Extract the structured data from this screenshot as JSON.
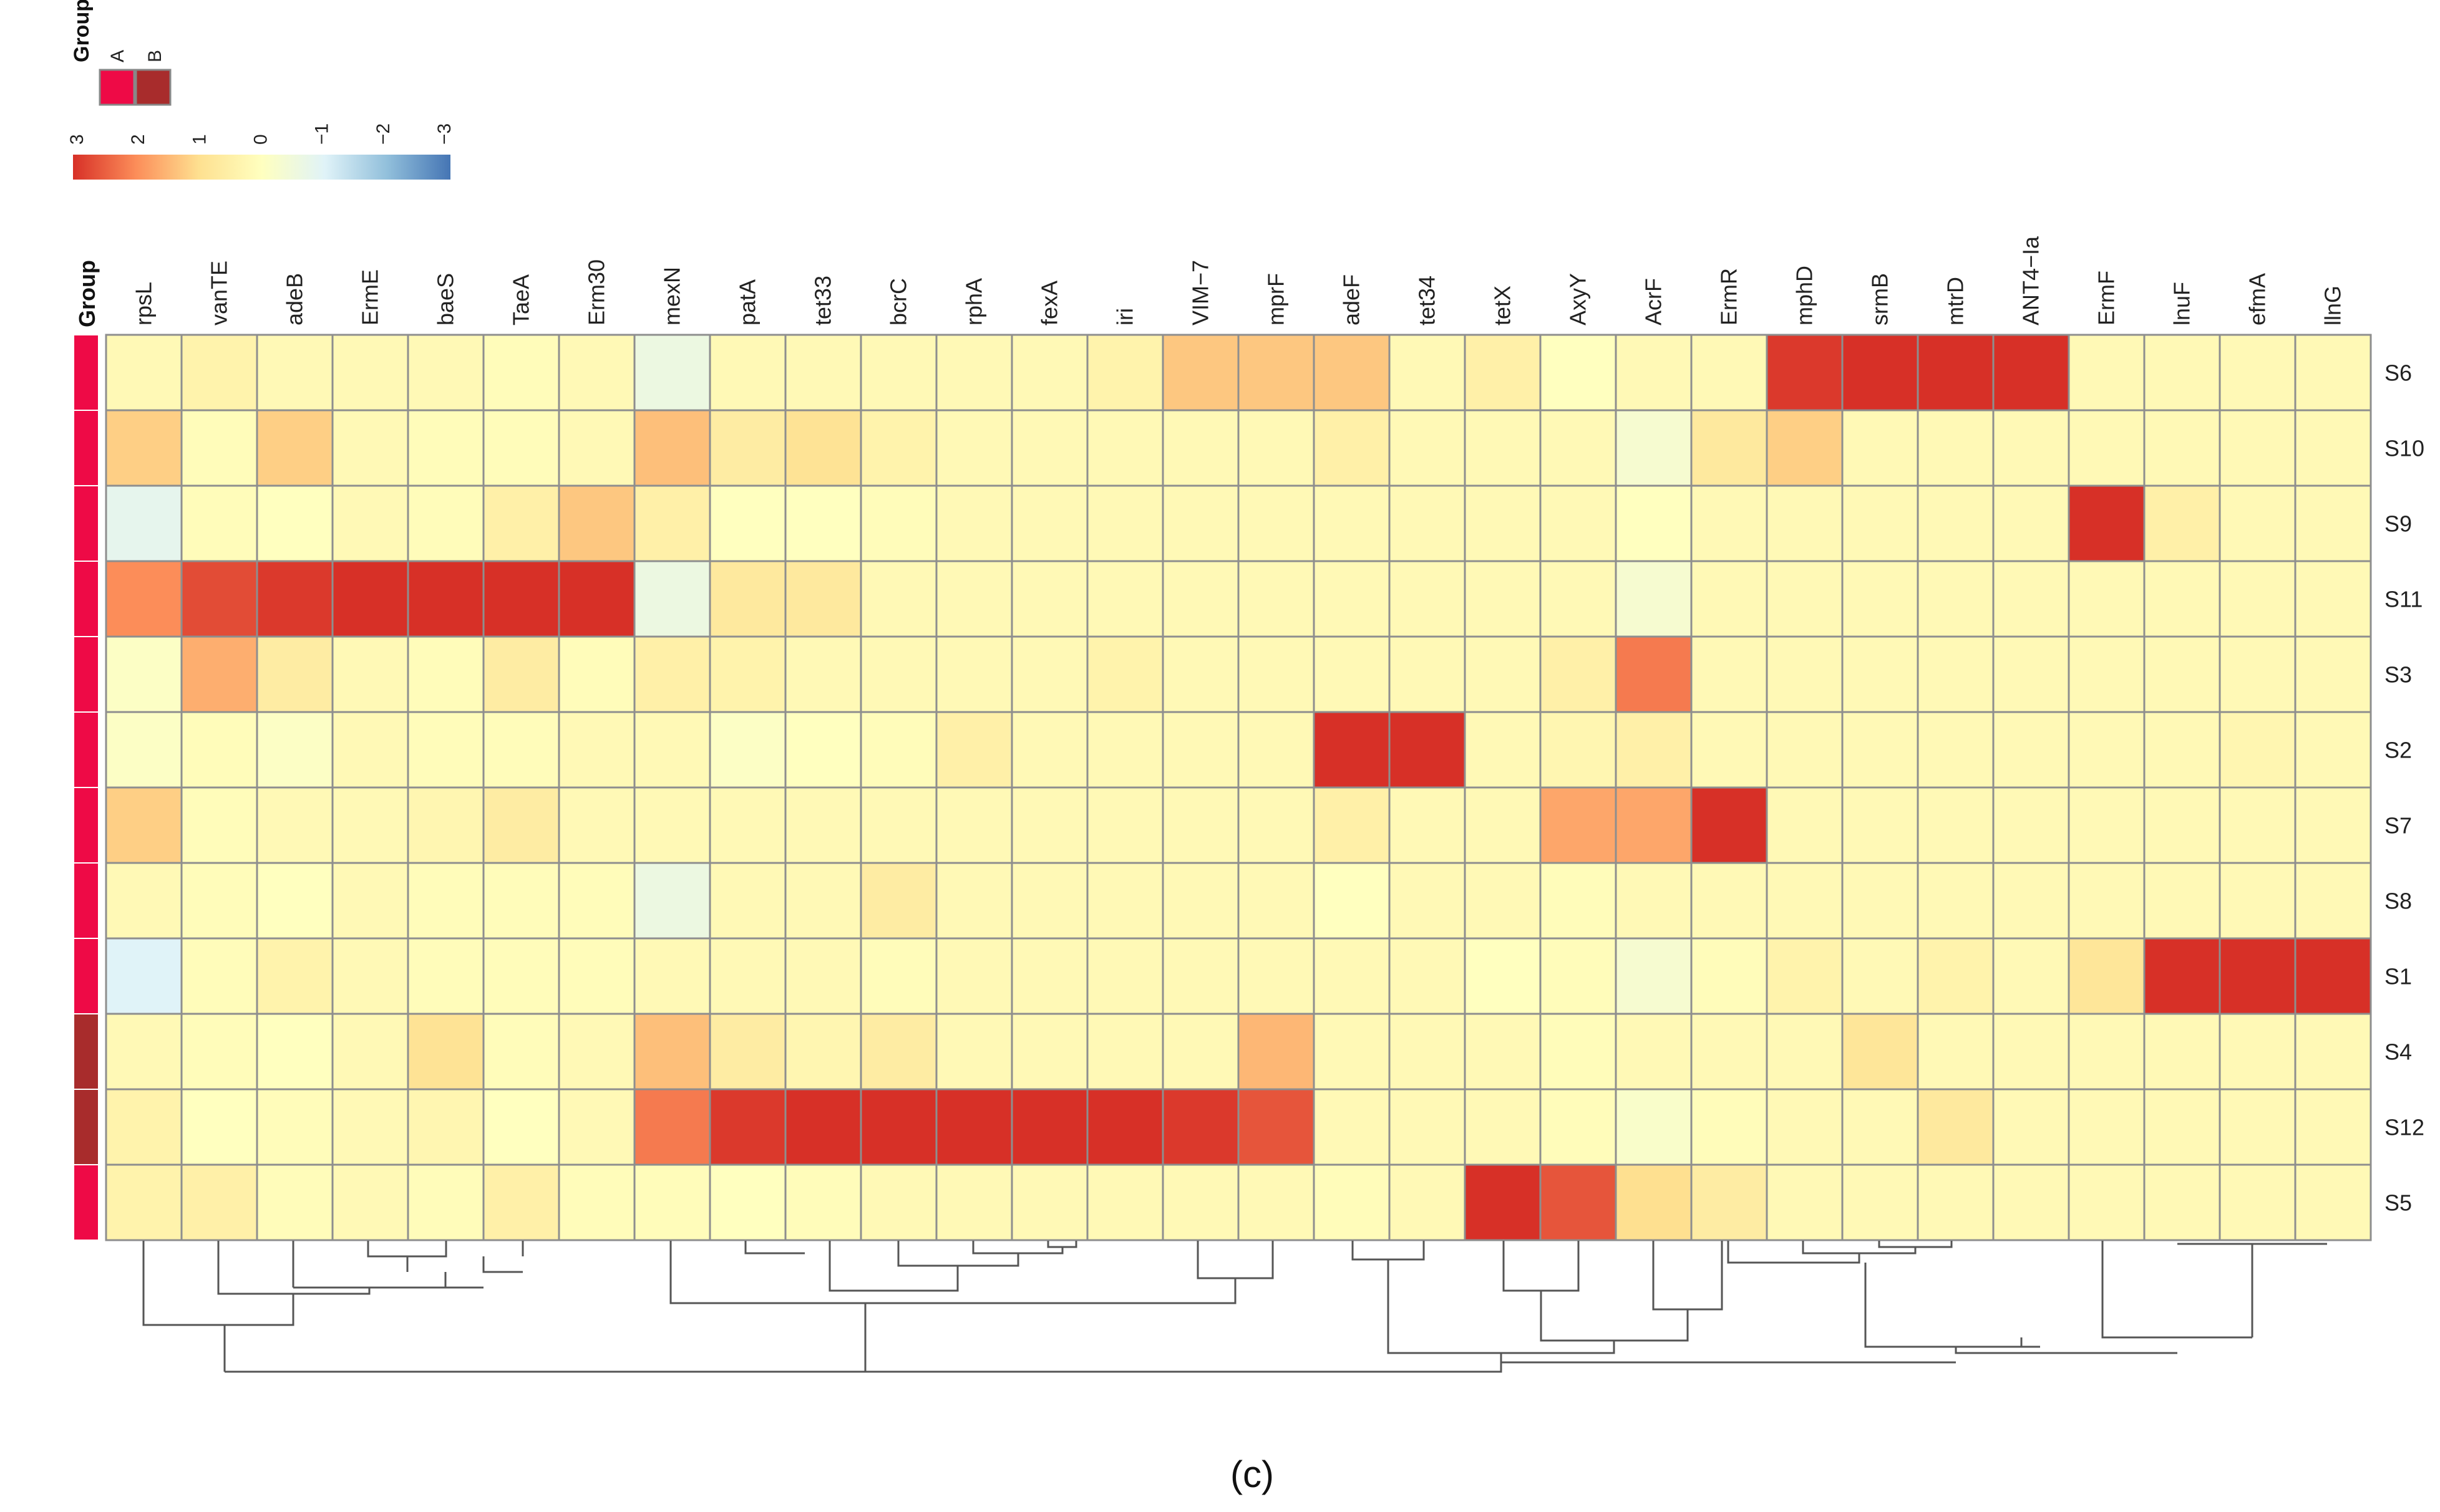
{
  "chart_data": {
    "type": "heatmap",
    "columns": [
      "rpsL",
      "vanTE",
      "adeB",
      "ErmE",
      "baeS",
      "TaeA",
      "Erm30",
      "mexN",
      "patA",
      "tet33",
      "bcrC",
      "rphA",
      "fexA",
      "iri",
      "VIM−7",
      "mprF",
      "adeF",
      "tet34",
      "tetX",
      "AxyY",
      "AcrF",
      "ErmR",
      "mphD",
      "srmB",
      "mtrD",
      "ANT4−Ia",
      "ErmF",
      "lnuF",
      "efmA",
      "llnG"
    ],
    "rows": [
      "S6",
      "S10",
      "S9",
      "S11",
      "S3",
      "S2",
      "S7",
      "S8",
      "S1",
      "S4",
      "S12",
      "S5"
    ],
    "row_groups": [
      "A",
      "A",
      "A",
      "A",
      "A",
      "A",
      "A",
      "A",
      "A",
      "B",
      "B",
      "A"
    ],
    "values": [
      [
        0.2,
        0.4,
        0.2,
        0.2,
        0.2,
        0.1,
        0.2,
        -0.6,
        0.2,
        0.2,
        0.2,
        0.2,
        0.2,
        0.4,
        1.3,
        1.3,
        1.3,
        0.2,
        0.5,
        0.0,
        0.2,
        0.2,
        2.9,
        3.0,
        3.0,
        3.0,
        0.2,
        0.2,
        0.2,
        0.2
      ],
      [
        1.2,
        0.1,
        1.2,
        0.2,
        0.1,
        0.1,
        0.2,
        1.4,
        0.6,
        0.9,
        0.4,
        0.2,
        0.2,
        0.2,
        0.2,
        0.2,
        0.5,
        0.2,
        0.2,
        0.2,
        -0.3,
        0.7,
        1.2,
        0.2,
        0.2,
        0.2,
        0.2,
        0.2,
        0.2,
        0.2
      ],
      [
        -0.8,
        0.1,
        0.0,
        0.2,
        0.1,
        0.5,
        1.3,
        0.5,
        0.0,
        0.0,
        0.1,
        0.2,
        0.2,
        0.2,
        0.2,
        0.2,
        0.2,
        0.2,
        0.2,
        0.2,
        0.0,
        0.2,
        0.2,
        0.2,
        0.2,
        0.2,
        3.0,
        0.5,
        0.2,
        0.2
      ],
      [
        2.0,
        2.7,
        2.9,
        3.0,
        3.0,
        3.0,
        3.0,
        -0.6,
        0.7,
        0.7,
        0.2,
        0.2,
        0.2,
        0.2,
        0.2,
        0.2,
        0.2,
        0.2,
        0.2,
        0.2,
        -0.3,
        0.2,
        0.2,
        0.2,
        0.2,
        0.2,
        0.2,
        0.2,
        0.2,
        0.2
      ],
      [
        -0.1,
        1.6,
        0.6,
        0.2,
        0.1,
        0.6,
        0.1,
        0.5,
        0.4,
        0.2,
        0.2,
        0.2,
        0.2,
        0.4,
        0.2,
        0.2,
        0.2,
        0.2,
        0.2,
        0.5,
        2.2,
        0.2,
        0.2,
        0.2,
        0.2,
        0.2,
        0.2,
        0.2,
        0.2,
        0.2
      ],
      [
        -0.1,
        0.1,
        -0.1,
        0.2,
        0.1,
        0.1,
        0.2,
        0.2,
        -0.1,
        0.0,
        0.1,
        0.5,
        0.2,
        0.2,
        0.2,
        0.2,
        3.0,
        3.1,
        0.2,
        0.3,
        0.5,
        0.2,
        0.2,
        0.2,
        0.2,
        0.2,
        0.2,
        0.2,
        0.3,
        0.2
      ],
      [
        1.2,
        0.1,
        0.2,
        0.2,
        0.3,
        0.6,
        0.2,
        0.2,
        0.2,
        0.2,
        0.2,
        0.2,
        0.2,
        0.2,
        0.2,
        0.2,
        0.5,
        0.2,
        0.2,
        1.7,
        1.7,
        3.0,
        0.2,
        0.2,
        0.2,
        0.2,
        0.2,
        0.2,
        0.2,
        0.2
      ],
      [
        0.2,
        0.1,
        0.0,
        0.2,
        0.1,
        0.1,
        0.1,
        -0.6,
        0.2,
        0.2,
        0.6,
        0.2,
        0.2,
        0.2,
        0.2,
        0.2,
        0.0,
        0.2,
        0.2,
        0.1,
        0.2,
        0.2,
        0.2,
        0.2,
        0.2,
        0.2,
        0.2,
        0.2,
        0.2,
        0.2
      ],
      [
        -1.0,
        0.1,
        0.4,
        0.2,
        0.1,
        0.1,
        0.1,
        0.2,
        0.2,
        0.2,
        0.1,
        0.2,
        0.2,
        0.2,
        0.2,
        0.2,
        0.2,
        0.2,
        0.0,
        0.1,
        -0.3,
        0.1,
        0.4,
        0.2,
        0.4,
        0.2,
        0.8,
        3.0,
        3.0,
        3.0
      ],
      [
        0.2,
        0.1,
        0.0,
        0.2,
        0.9,
        0.1,
        0.2,
        1.4,
        0.6,
        0.3,
        0.6,
        0.2,
        0.2,
        0.2,
        0.2,
        1.5,
        0.2,
        0.2,
        0.2,
        0.1,
        0.2,
        0.2,
        0.2,
        0.8,
        0.2,
        0.2,
        0.2,
        0.2,
        0.2,
        0.2
      ],
      [
        0.4,
        0.0,
        0.1,
        0.2,
        0.3,
        0.0,
        0.2,
        2.2,
        2.9,
        3.0,
        3.0,
        3.1,
        3.1,
        3.1,
        2.9,
        2.6,
        0.2,
        0.2,
        0.2,
        0.1,
        -0.2,
        0.1,
        0.2,
        0.2,
        0.7,
        0.2,
        0.2,
        0.2,
        0.2,
        0.2
      ],
      [
        0.4,
        0.5,
        0.1,
        0.2,
        0.1,
        0.5,
        0.1,
        0.1,
        0.0,
        0.1,
        0.2,
        0.2,
        0.2,
        0.2,
        0.2,
        0.2,
        0.1,
        0.2,
        3.0,
        2.6,
        1.0,
        0.6,
        0.2,
        0.2,
        0.2,
        0.2,
        0.2,
        0.2,
        0.2,
        0.2
      ]
    ],
    "group_legend": {
      "title": "Group",
      "items": [
        {
          "label": "A",
          "color": "#ee0a46"
        },
        {
          "label": "B",
          "color": "#a82c2c"
        }
      ]
    },
    "color_scale": {
      "ticks": [
        "3",
        "2",
        "1",
        "0",
        "−1",
        "−2",
        "−3"
      ],
      "range": [
        3,
        -3
      ],
      "colors": [
        "#d73027",
        "#fc8d59",
        "#fee090",
        "#ffffbf",
        "#e0f3f8",
        "#91bfdb",
        "#4575b4"
      ]
    },
    "annotation_label": "Group"
  },
  "caption": "(c)"
}
